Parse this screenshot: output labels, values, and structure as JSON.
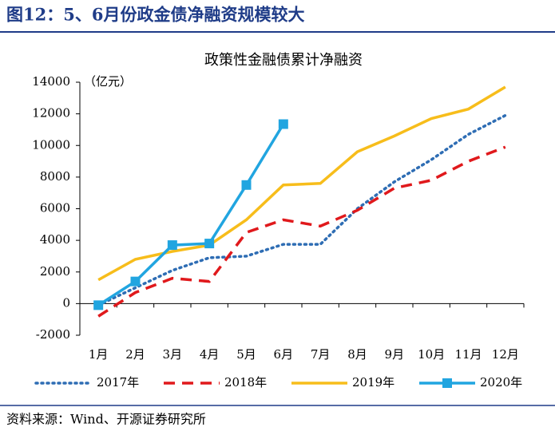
{
  "header": "图12：5、6月份政金债净融资规模较大",
  "source": "资料来源：Wind、开源证券研究所",
  "chart_data": {
    "type": "line",
    "title": "政策性金融债累计净融资",
    "y_label": "（亿元）",
    "categories": [
      "1月",
      "2月",
      "3月",
      "4月",
      "5月",
      "6月",
      "7月",
      "8月",
      "9月",
      "10月",
      "11月",
      "12月"
    ],
    "ylim": [
      -2000,
      14000
    ],
    "yticks": [
      -2000,
      0,
      2000,
      4000,
      6000,
      8000,
      10000,
      12000,
      14000
    ],
    "series": [
      {
        "name": "2017年",
        "color": "#2e6db4",
        "dash": "dotted",
        "values": [
          -100,
          1000,
          2100,
          2900,
          3000,
          3750,
          3750,
          6000,
          7700,
          9100,
          10700,
          11900
        ]
      },
      {
        "name": "2018年",
        "color": "#e0191c",
        "dash": "dashed",
        "values": [
          -800,
          700,
          1600,
          1400,
          4500,
          5300,
          4900,
          5900,
          7300,
          7800,
          9000,
          9900
        ]
      },
      {
        "name": "2019年",
        "color": "#f7bd1b",
        "dash": "solid",
        "values": [
          1500,
          2800,
          3300,
          3700,
          5300,
          7500,
          7600,
          9600,
          10600,
          11700,
          12300,
          13700
        ]
      },
      {
        "name": "2020年",
        "color": "#21a5e0",
        "dash": "solid",
        "marker": "square",
        "values": [
          -100,
          1400,
          3700,
          3800,
          7500,
          11350,
          null,
          null,
          null,
          null,
          null,
          null
        ]
      }
    ]
  }
}
